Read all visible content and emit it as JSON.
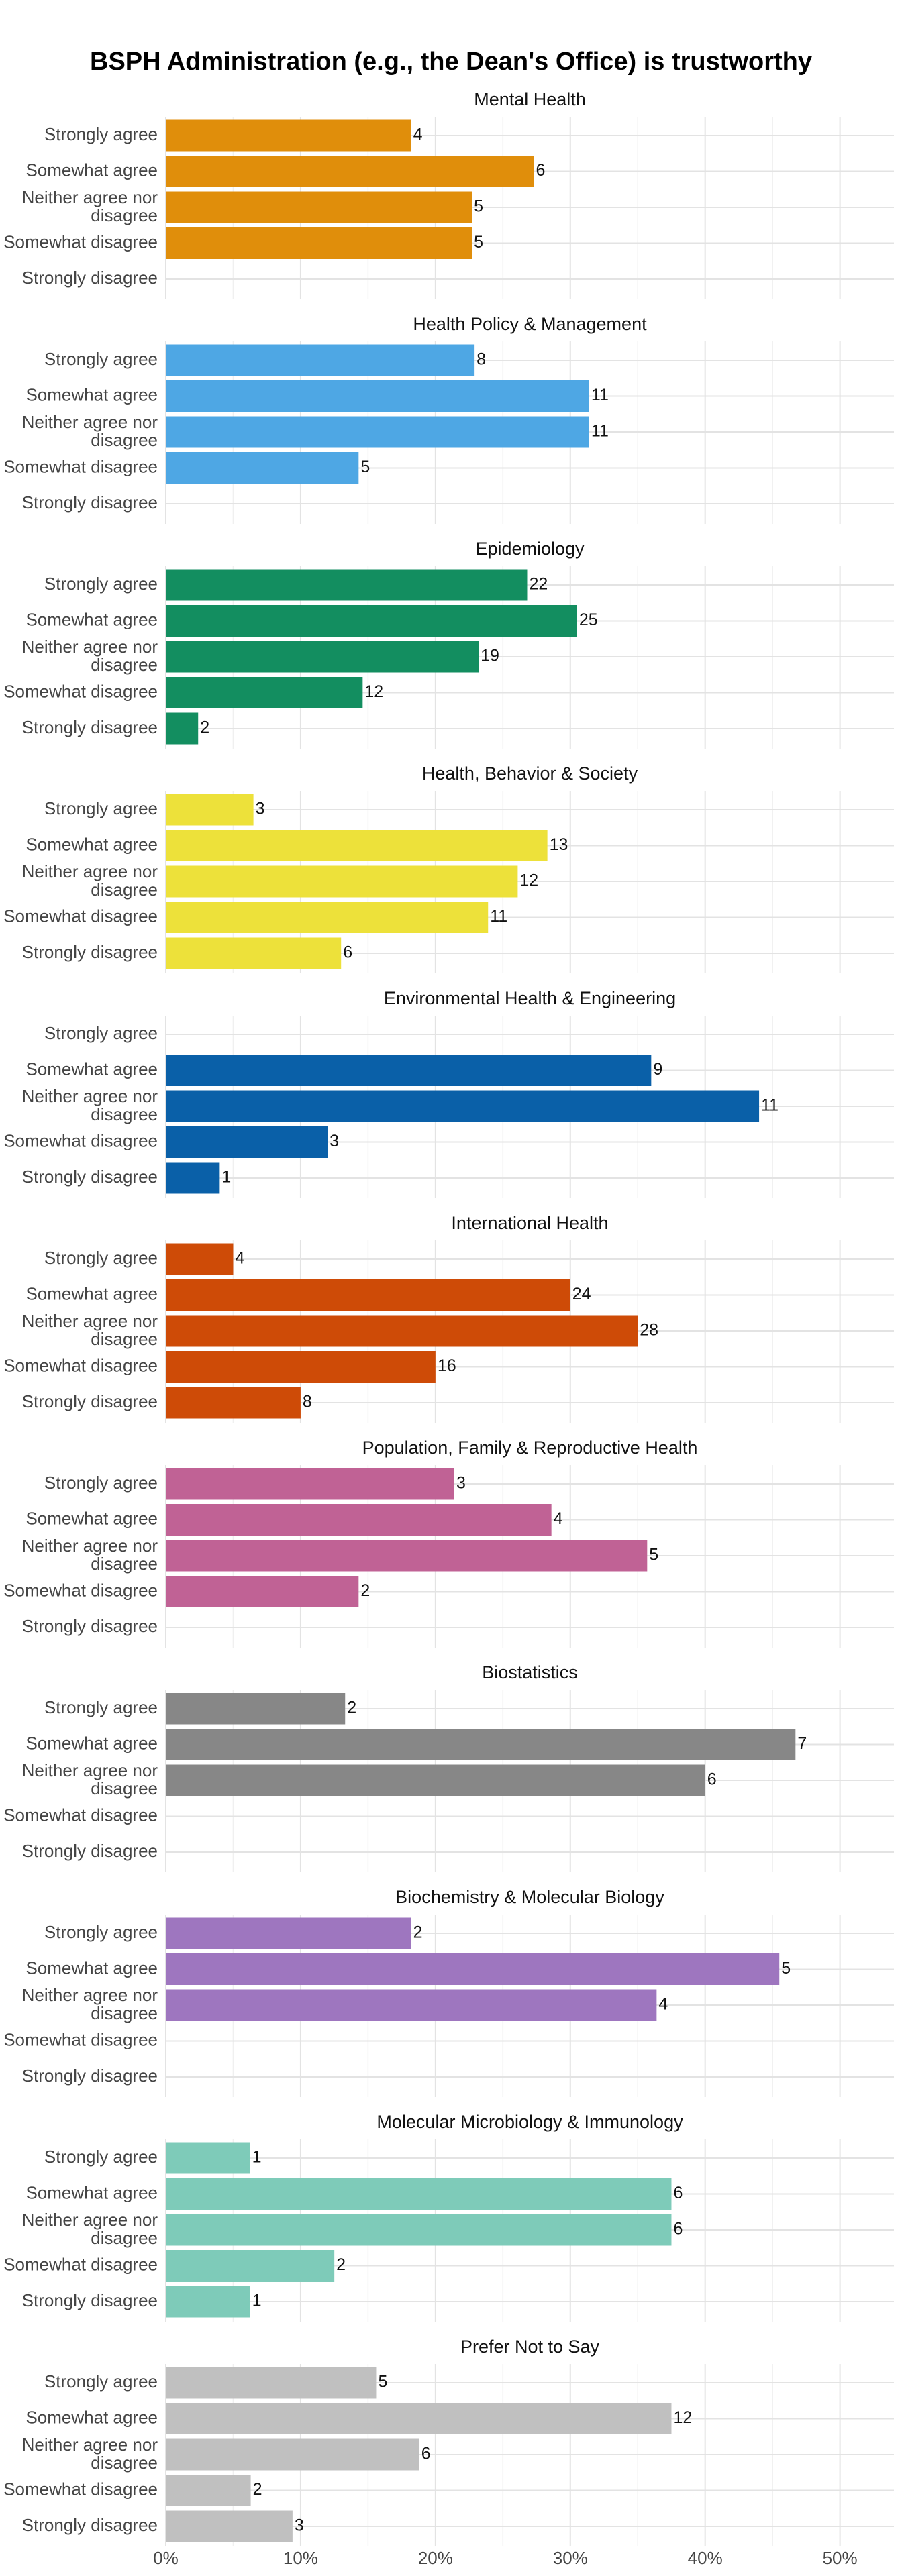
{
  "title": "BSPH Administration (e.g., the Dean's Office) is trustworthy",
  "chart_data": [
    {
      "type": "bar",
      "title": "Mental Health",
      "categories": [
        "Strongly agree",
        "Somewhat agree",
        "Neither agree nor disagree",
        "Somewhat disagree",
        "Strongly disagree"
      ],
      "values": [
        18.2,
        27.3,
        22.7,
        22.7,
        0
      ],
      "counts": [
        4,
        6,
        5,
        5,
        null
      ],
      "color": "#E08E0B",
      "xlim": [
        0,
        54
      ],
      "xticks": [
        {
          "value": 0,
          "label": "0%"
        },
        {
          "value": 10,
          "label": "10%"
        },
        {
          "value": 20,
          "label": "20%"
        },
        {
          "value": 30,
          "label": "30%"
        },
        {
          "value": 40,
          "label": "40%"
        },
        {
          "value": 50,
          "label": "50%"
        }
      ]
    },
    {
      "type": "bar",
      "title": "Health Policy & Management",
      "categories": [
        "Strongly agree",
        "Somewhat agree",
        "Neither agree nor disagree",
        "Somewhat disagree",
        "Strongly disagree"
      ],
      "values": [
        22.9,
        31.4,
        31.4,
        14.3,
        0
      ],
      "counts": [
        8,
        11,
        11,
        5,
        null
      ],
      "color": "#4EA7E4",
      "xlim": [
        0,
        54
      ],
      "xticks": [
        {
          "value": 0,
          "label": "0%"
        },
        {
          "value": 10,
          "label": "10%"
        },
        {
          "value": 20,
          "label": "20%"
        },
        {
          "value": 30,
          "label": "30%"
        },
        {
          "value": 40,
          "label": "40%"
        },
        {
          "value": 50,
          "label": "50%"
        }
      ]
    },
    {
      "type": "bar",
      "title": "Epidemiology",
      "categories": [
        "Strongly agree",
        "Somewhat agree",
        "Neither agree nor disagree",
        "Somewhat disagree",
        "Strongly disagree"
      ],
      "values": [
        26.8,
        30.5,
        23.2,
        14.6,
        2.4
      ],
      "counts": [
        22,
        25,
        19,
        12,
        2
      ],
      "color": "#138E60",
      "xlim": [
        0,
        54
      ],
      "xticks": [
        {
          "value": 0,
          "label": "0%"
        },
        {
          "value": 10,
          "label": "10%"
        },
        {
          "value": 20,
          "label": "20%"
        },
        {
          "value": 30,
          "label": "30%"
        },
        {
          "value": 40,
          "label": "40%"
        },
        {
          "value": 50,
          "label": "50%"
        }
      ]
    },
    {
      "type": "bar",
      "title": "Health, Behavior & Society",
      "categories": [
        "Strongly agree",
        "Somewhat agree",
        "Neither agree nor disagree",
        "Somewhat disagree",
        "Strongly disagree"
      ],
      "values": [
        6.5,
        28.3,
        26.1,
        23.9,
        13.0
      ],
      "counts": [
        3,
        13,
        12,
        11,
        6
      ],
      "color": "#EDE13A",
      "xlim": [
        0,
        54
      ],
      "xticks": [
        {
          "value": 0,
          "label": "0%"
        },
        {
          "value": 10,
          "label": "10%"
        },
        {
          "value": 20,
          "label": "20%"
        },
        {
          "value": 30,
          "label": "30%"
        },
        {
          "value": 40,
          "label": "40%"
        },
        {
          "value": 50,
          "label": "50%"
        }
      ]
    },
    {
      "type": "bar",
      "title": "Environmental Health & Engineering",
      "categories": [
        "Strongly agree",
        "Somewhat agree",
        "Neither agree nor disagree",
        "Somewhat disagree",
        "Strongly disagree"
      ],
      "values": [
        0,
        36,
        44,
        12,
        4
      ],
      "counts": [
        null,
        9,
        11,
        3,
        1
      ],
      "color": "#0A60A8",
      "xlim": [
        0,
        54
      ],
      "xticks": [
        {
          "value": 0,
          "label": "0%"
        },
        {
          "value": 10,
          "label": "10%"
        },
        {
          "value": 20,
          "label": "20%"
        },
        {
          "value": 30,
          "label": "30%"
        },
        {
          "value": 40,
          "label": "40%"
        },
        {
          "value": 50,
          "label": "50%"
        }
      ]
    },
    {
      "type": "bar",
      "title": "International Health",
      "categories": [
        "Strongly agree",
        "Somewhat agree",
        "Neither agree nor disagree",
        "Somewhat disagree",
        "Strongly disagree"
      ],
      "values": [
        5,
        30,
        35,
        20,
        10
      ],
      "counts": [
        4,
        24,
        28,
        16,
        8
      ],
      "color": "#CE4B07",
      "xlim": [
        0,
        54
      ],
      "xticks": [
        {
          "value": 0,
          "label": "0%"
        },
        {
          "value": 10,
          "label": "10%"
        },
        {
          "value": 20,
          "label": "20%"
        },
        {
          "value": 30,
          "label": "30%"
        },
        {
          "value": 40,
          "label": "40%"
        },
        {
          "value": 50,
          "label": "50%"
        }
      ]
    },
    {
      "type": "bar",
      "title": "Population, Family & Reproductive Health",
      "categories": [
        "Strongly agree",
        "Somewhat agree",
        "Neither agree nor disagree",
        "Somewhat disagree",
        "Strongly disagree"
      ],
      "values": [
        21.4,
        28.6,
        35.7,
        14.3,
        0
      ],
      "counts": [
        3,
        4,
        5,
        2,
        null
      ],
      "color": "#C06295",
      "xlim": [
        0,
        54
      ],
      "xticks": [
        {
          "value": 0,
          "label": "0%"
        },
        {
          "value": 10,
          "label": "10%"
        },
        {
          "value": 20,
          "label": "20%"
        },
        {
          "value": 30,
          "label": "30%"
        },
        {
          "value": 40,
          "label": "40%"
        },
        {
          "value": 50,
          "label": "50%"
        }
      ]
    },
    {
      "type": "bar",
      "title": "Biostatistics",
      "categories": [
        "Strongly agree",
        "Somewhat agree",
        "Neither agree nor disagree",
        "Somewhat disagree",
        "Strongly disagree"
      ],
      "values": [
        13.3,
        46.7,
        40.0,
        0,
        0
      ],
      "counts": [
        2,
        7,
        6,
        null,
        null
      ],
      "color": "#878787",
      "xlim": [
        0,
        54
      ],
      "xticks": [
        {
          "value": 0,
          "label": "0%"
        },
        {
          "value": 10,
          "label": "10%"
        },
        {
          "value": 20,
          "label": "20%"
        },
        {
          "value": 30,
          "label": "30%"
        },
        {
          "value": 40,
          "label": "40%"
        },
        {
          "value": 50,
          "label": "50%"
        }
      ]
    },
    {
      "type": "bar",
      "title": "Biochemistry & Molecular Biology",
      "categories": [
        "Strongly agree",
        "Somewhat agree",
        "Neither agree nor disagree",
        "Somewhat disagree",
        "Strongly disagree"
      ],
      "values": [
        18.2,
        45.5,
        36.4,
        0,
        0
      ],
      "counts": [
        2,
        5,
        4,
        null,
        null
      ],
      "color": "#9E76BF",
      "xlim": [
        0,
        54
      ],
      "xticks": [
        {
          "value": 0,
          "label": "0%"
        },
        {
          "value": 10,
          "label": "10%"
        },
        {
          "value": 20,
          "label": "20%"
        },
        {
          "value": 30,
          "label": "30%"
        },
        {
          "value": 40,
          "label": "40%"
        },
        {
          "value": 50,
          "label": "50%"
        }
      ]
    },
    {
      "type": "bar",
      "title": "Molecular Microbiology & Immunology",
      "categories": [
        "Strongly agree",
        "Somewhat agree",
        "Neither agree nor disagree",
        "Somewhat disagree",
        "Strongly disagree"
      ],
      "values": [
        6.25,
        37.5,
        37.5,
        12.5,
        6.25
      ],
      "counts": [
        1,
        6,
        6,
        2,
        1
      ],
      "color": "#7ECBB9",
      "xlim": [
        0,
        54
      ],
      "xticks": [
        {
          "value": 0,
          "label": "0%"
        },
        {
          "value": 10,
          "label": "10%"
        },
        {
          "value": 20,
          "label": "20%"
        },
        {
          "value": 30,
          "label": "30%"
        },
        {
          "value": 40,
          "label": "40%"
        },
        {
          "value": 50,
          "label": "50%"
        }
      ]
    },
    {
      "type": "bar",
      "title": "Prefer Not to Say",
      "categories": [
        "Strongly agree",
        "Somewhat agree",
        "Neither agree nor disagree",
        "Somewhat disagree",
        "Strongly disagree"
      ],
      "values": [
        15.6,
        37.5,
        18.8,
        6.3,
        9.4
      ],
      "counts": [
        5,
        12,
        6,
        2,
        3
      ],
      "color": "#C0C0C0",
      "xlim": [
        0,
        54
      ],
      "xticks": [
        {
          "value": 0,
          "label": "0%"
        },
        {
          "value": 10,
          "label": "10%"
        },
        {
          "value": 20,
          "label": "20%"
        },
        {
          "value": 30,
          "label": "30%"
        },
        {
          "value": 40,
          "label": "40%"
        },
        {
          "value": 50,
          "label": "50%"
        }
      ]
    }
  ]
}
